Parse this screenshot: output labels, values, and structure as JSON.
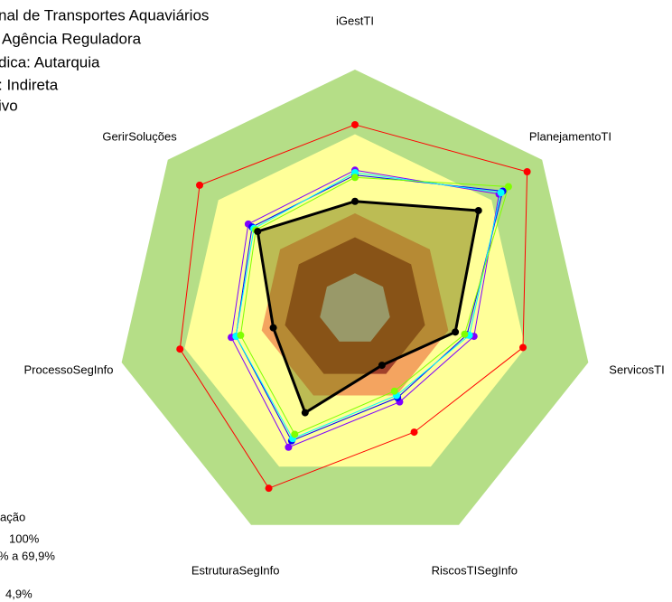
{
  "chart_data": {
    "type": "radar",
    "title_lines": [
      "nal de Transportes Aquaviários",
      " Agência Reguladora",
      "dica: Autarquia",
      ": Indireta",
      "ivo"
    ],
    "legend_fragments": [
      "ação",
      "100%",
      "% a 69,9%",
      "4,9%"
    ],
    "categories": [
      "iGestTI",
      "PlanejamentoTI",
      "ServicosTI",
      "RiscosTISegInfo",
      "EstruturaSegInfo",
      "ProcessoSegInfo",
      "GerirSoluções"
    ],
    "rlim": [
      0,
      100
    ],
    "bands": [
      {
        "to": 100,
        "color": "#b5de87"
      },
      {
        "to": 73,
        "color": "#ffff99"
      },
      {
        "to": 40,
        "color": "#f4a460"
      },
      {
        "to": 30,
        "color": "#a0402a"
      },
      {
        "to": 15,
        "color": "#bfbfbf"
      }
    ],
    "series": [
      {
        "color": "#ff0000",
        "values": [
          77,
          92,
          72,
          57,
          83,
          75,
          83
        ]
      },
      {
        "color": "#7f00ff",
        "values": [
          58,
          77,
          51,
          43,
          64,
          53,
          57
        ]
      },
      {
        "color": "#0000ff",
        "values": [
          56,
          79,
          48,
          41,
          61,
          51,
          55
        ]
      },
      {
        "color": "#00ffff",
        "values": [
          57,
          78,
          49,
          40,
          60,
          51,
          54
        ]
      },
      {
        "color": "#7fff00",
        "values": [
          55,
          82,
          47,
          38,
          58,
          49,
          53
        ]
      },
      {
        "color": "#000000",
        "fill": "#6b6b00",
        "values": [
          45,
          66,
          43,
          26,
          48,
          35,
          52
        ]
      }
    ]
  }
}
